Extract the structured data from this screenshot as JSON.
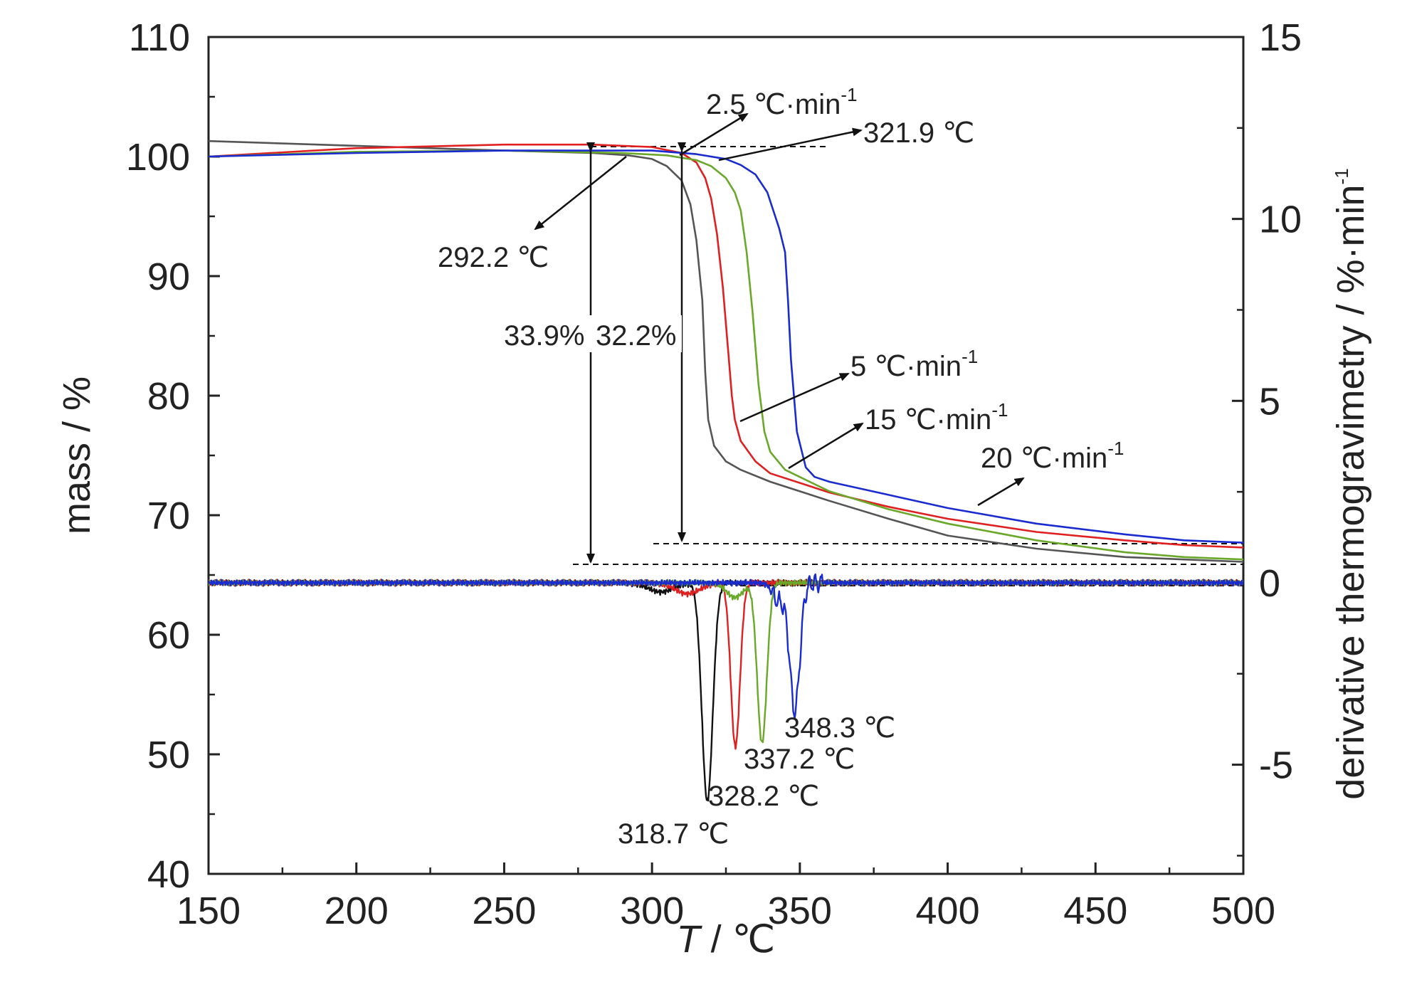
{
  "chart_data": {
    "type": "line",
    "xlabel": {
      "italic": "T",
      "rest": " / ℃"
    },
    "ylabel_left": "mass / %",
    "ylabel_right": {
      "main": "derivative thermogravimetry / %·min",
      "sup": "-1"
    },
    "xlim": [
      150,
      500
    ],
    "ylim_left": [
      40,
      110
    ],
    "ylim_right": [
      -8,
      15
    ],
    "x_ticks": [
      150,
      200,
      250,
      300,
      350,
      400,
      450,
      500
    ],
    "y_left_ticks": [
      40,
      50,
      60,
      70,
      80,
      90,
      100,
      110
    ],
    "y_right_ticks": [
      -5,
      0,
      5,
      10,
      15
    ],
    "grid": false,
    "colors": {
      "2.5": "#555555",
      "5": "#e02020",
      "15": "#6aa82a",
      "20": "#1a2bd0",
      "dtg_2.5": "#111111"
    },
    "tg_series": [
      {
        "rate": "2.5",
        "x": [
          150,
          200,
          250,
          280,
          292,
          300,
          305,
          310,
          313,
          315,
          317,
          318,
          319,
          321,
          325,
          330,
          340,
          360,
          380,
          400,
          430,
          460,
          480,
          500
        ],
        "y": [
          101.3,
          100.9,
          100.5,
          100.3,
          100.1,
          99.8,
          99.2,
          98.0,
          96.0,
          93.0,
          88.0,
          82.0,
          78.0,
          75.8,
          74.5,
          73.8,
          72.8,
          71.2,
          69.7,
          68.3,
          67.2,
          66.5,
          66.3,
          66.1
        ]
      },
      {
        "rate": "5",
        "x": [
          150,
          200,
          250,
          280,
          300,
          310,
          315,
          318,
          320,
          322,
          324,
          326,
          327,
          328,
          330,
          335,
          340,
          360,
          380,
          400,
          430,
          460,
          480,
          500
        ],
        "y": [
          100.0,
          100.7,
          101.0,
          101.0,
          100.8,
          100.3,
          99.5,
          98.2,
          96.5,
          93.5,
          89.0,
          83.0,
          80.0,
          78.0,
          76.2,
          74.5,
          73.5,
          71.9,
          70.7,
          69.7,
          68.6,
          67.9,
          67.5,
          67.3
        ]
      },
      {
        "rate": "15",
        "x": [
          150,
          200,
          250,
          290,
          305,
          315,
          320,
          325,
          328,
          330,
          332,
          334,
          336,
          338,
          340,
          345,
          360,
          380,
          400,
          430,
          460,
          480,
          500
        ],
        "y": [
          100.0,
          100.4,
          100.5,
          100.3,
          100.1,
          99.7,
          99.2,
          98.2,
          97.0,
          95.5,
          92.0,
          87.0,
          81.0,
          77.0,
          75.3,
          73.8,
          72.0,
          70.5,
          69.3,
          67.9,
          66.9,
          66.5,
          66.3
        ]
      },
      {
        "rate": "20",
        "x": [
          150,
          200,
          250,
          300,
          315,
          325,
          330,
          335,
          339,
          341,
          343,
          345,
          346,
          347,
          349,
          352,
          355,
          360,
          380,
          400,
          430,
          460,
          480,
          500
        ],
        "y": [
          100.0,
          100.3,
          100.5,
          100.5,
          100.2,
          99.8,
          99.3,
          98.5,
          97.0,
          95.5,
          94.0,
          92.0,
          88.0,
          83.0,
          77.0,
          74.0,
          73.2,
          72.8,
          71.7,
          70.6,
          69.3,
          68.4,
          67.9,
          67.7
        ]
      }
    ],
    "dtg_series": [
      {
        "rate": "2.5",
        "peak_x": 318.7,
        "peak_y": -6.0,
        "width": 2.6,
        "shoulder_x": 303,
        "shoulder_y": -0.25,
        "shoulder_w": 6
      },
      {
        "rate": "5",
        "peak_x": 328.2,
        "peak_y": -4.5,
        "width": 2.2,
        "shoulder_x": 312,
        "shoulder_y": -0.3,
        "shoulder_w": 6
      },
      {
        "rate": "15",
        "peak_x": 337.2,
        "peak_y": -4.4,
        "width": 2.3,
        "shoulder_x": 328,
        "shoulder_y": -0.4,
        "shoulder_w": 4
      },
      {
        "rate": "20",
        "peak_x": 348.3,
        "peak_y": -3.5,
        "width": 2.4,
        "shoulder_x": 343,
        "shoulder_y": -0.5,
        "shoulder_w": 3
      }
    ],
    "onset_annotations": [
      {
        "label": "292.2 ℃"
      },
      {
        "label": "321.9 ℃"
      }
    ],
    "mass_loss_labels": [
      "33.9%",
      "32.2%"
    ],
    "rate_labels": [
      {
        "rate": "2.5",
        "text": "2.5 ℃·min",
        "sup": "-1"
      },
      {
        "rate": "5",
        "text": "5 ℃·min",
        "sup": "-1"
      },
      {
        "rate": "15",
        "text": "15 ℃·min",
        "sup": "-1"
      },
      {
        "rate": "20",
        "text": "20 ℃·min",
        "sup": "-1"
      }
    ],
    "peak_labels": [
      "318.7 ℃",
      "328.2 ℃",
      "337.2 ℃",
      "348.3 ℃"
    ]
  }
}
